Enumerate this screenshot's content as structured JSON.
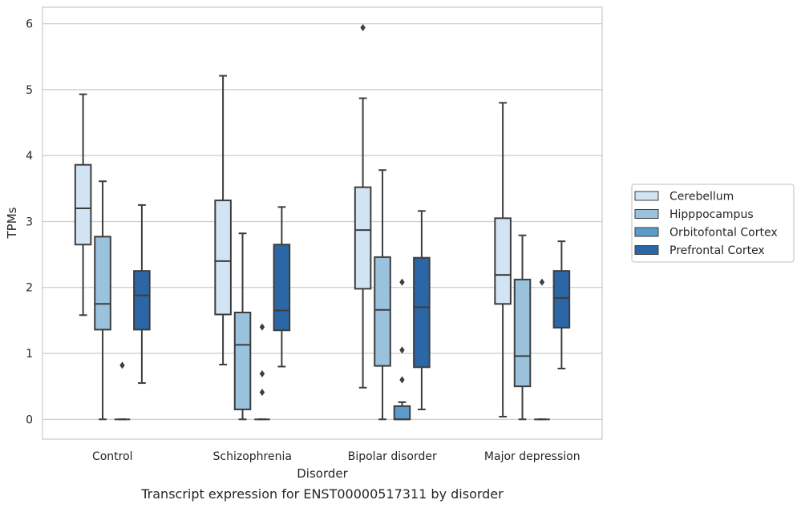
{
  "chart_data": {
    "type": "boxplot",
    "title": "",
    "caption": "Transcript expression for ENST00000517311 by disorder",
    "xlabel": "Disorder",
    "ylabel": "TPMs",
    "ylim": [
      -0.3,
      6.25
    ],
    "yticks": [
      "0",
      "1",
      "2",
      "3",
      "4",
      "5",
      "6"
    ],
    "grid": "horizontal",
    "legend_position": "right",
    "categories": [
      "Control",
      "Schizophrenia",
      "Bipolar disorder",
      "Major depression"
    ],
    "series": [
      {
        "name": "Cerebellum",
        "color": "#d2e3f3",
        "boxes": [
          {
            "whisker_low": 1.58,
            "q1": 2.65,
            "median": 3.2,
            "q3": 3.86,
            "whisker_high": 4.93,
            "outliers": []
          },
          {
            "whisker_low": 0.83,
            "q1": 1.59,
            "median": 2.4,
            "q3": 3.32,
            "whisker_high": 5.21,
            "outliers": []
          },
          {
            "whisker_low": 0.48,
            "q1": 1.98,
            "median": 2.87,
            "q3": 3.52,
            "whisker_high": 4.87,
            "outliers": [
              5.94
            ]
          },
          {
            "whisker_low": 0.04,
            "q1": 1.75,
            "median": 2.19,
            "q3": 3.05,
            "whisker_high": 4.8,
            "outliers": []
          }
        ]
      },
      {
        "name": "Hipppocampus",
        "color": "#9ac2dd",
        "boxes": [
          {
            "whisker_low": 0.0,
            "q1": 1.36,
            "median": 1.75,
            "q3": 2.77,
            "whisker_high": 3.61,
            "outliers": []
          },
          {
            "whisker_low": 0.0,
            "q1": 0.15,
            "median": 1.13,
            "q3": 1.62,
            "whisker_high": 2.82,
            "outliers": []
          },
          {
            "whisker_low": 0.0,
            "q1": 0.81,
            "median": 1.66,
            "q3": 2.46,
            "whisker_high": 3.78,
            "outliers": []
          },
          {
            "whisker_low": 0.0,
            "q1": 0.5,
            "median": 0.96,
            "q3": 2.12,
            "whisker_high": 2.79,
            "outliers": []
          }
        ]
      },
      {
        "name": "Orbitofontal Cortex",
        "color": "#5b9ac9",
        "boxes": [
          {
            "whisker_low": 0.0,
            "q1": 0.0,
            "median": 0.0,
            "q3": 0.0,
            "whisker_high": 0.0,
            "outliers": [
              0.82
            ]
          },
          {
            "whisker_low": 0.0,
            "q1": 0.0,
            "median": 0.0,
            "q3": 0.0,
            "whisker_high": 0.0,
            "outliers": [
              1.4,
              0.69,
              0.41
            ]
          },
          {
            "whisker_low": 0.0,
            "q1": 0.0,
            "median": 0.0,
            "q3": 0.2,
            "whisker_high": 0.26,
            "outliers": [
              2.08,
              1.05,
              0.6
            ]
          },
          {
            "whisker_low": 0.0,
            "q1": 0.0,
            "median": 0.0,
            "q3": 0.0,
            "whisker_high": 0.0,
            "outliers": [
              2.08
            ]
          }
        ]
      },
      {
        "name": "Prefrontal Cortex",
        "color": "#2b66a6",
        "boxes": [
          {
            "whisker_low": 0.55,
            "q1": 1.36,
            "median": 1.88,
            "q3": 2.25,
            "whisker_high": 3.25,
            "outliers": []
          },
          {
            "whisker_low": 0.8,
            "q1": 1.35,
            "median": 1.65,
            "q3": 2.65,
            "whisker_high": 3.22,
            "outliers": []
          },
          {
            "whisker_low": 0.15,
            "q1": 0.79,
            "median": 1.7,
            "q3": 2.45,
            "whisker_high": 3.16,
            "outliers": []
          },
          {
            "whisker_low": 0.77,
            "q1": 1.39,
            "median": 1.84,
            "q3": 2.25,
            "whisker_high": 2.7,
            "outliers": []
          }
        ]
      }
    ]
  }
}
